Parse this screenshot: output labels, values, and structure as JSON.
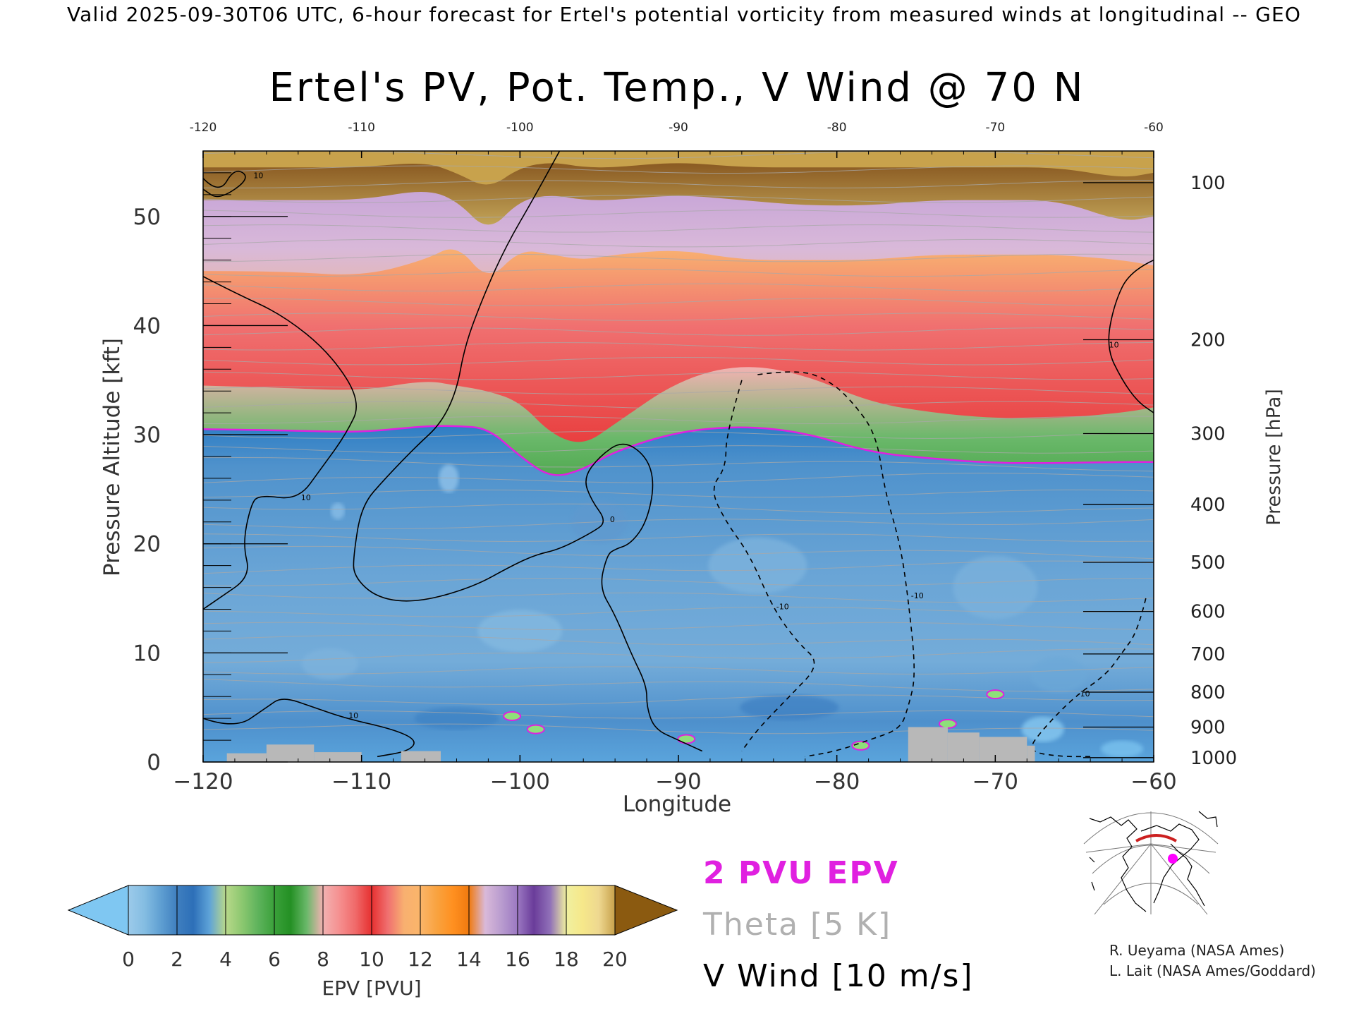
{
  "header": {
    "valid_line": "Valid 2025-09-30T06 UTC, 6-hour forecast for Ertel's potential vorticity from measured winds at longitudinal -- GEO"
  },
  "chart_data": {
    "type": "heatmap",
    "title": "Ertel's PV, Pot. Temp., V Wind @ 70 N",
    "xlabel": "Longitude",
    "ylabel": "Pressure Altitude [kft]",
    "ylabel_right": "Pressure [hPa]",
    "xlim": [
      -120,
      -60
    ],
    "ylim": [
      0,
      56
    ],
    "x_ticks": [
      -120,
      -110,
      -100,
      -90,
      -80,
      -70,
      -60
    ],
    "x_tick_labels": [
      "−120",
      "−110",
      "−100",
      "−90",
      "−80",
      "−70",
      "−60"
    ],
    "top_tick_labels": [
      "-120",
      "-110",
      "-100",
      "-90",
      "-80",
      "-70",
      "-60"
    ],
    "y_ticks": [
      0,
      10,
      20,
      30,
      40,
      50
    ],
    "y_tick_labels": [
      "0",
      "10",
      "20",
      "30",
      "40",
      "50"
    ],
    "pressure_ticks": [
      {
        "hpa": 100,
        "kft": 53.1,
        "label": "100"
      },
      {
        "hpa": 200,
        "kft": 38.7,
        "label": "200"
      },
      {
        "hpa": 300,
        "kft": 30.1,
        "label": "300"
      },
      {
        "hpa": 400,
        "kft": 23.6,
        "label": "400"
      },
      {
        "hpa": 500,
        "kft": 18.3,
        "label": "500"
      },
      {
        "hpa": 600,
        "kft": 13.8,
        "label": "600"
      },
      {
        "hpa": 700,
        "kft": 9.9,
        "label": "700"
      },
      {
        "hpa": 800,
        "kft": 6.4,
        "label": "800"
      },
      {
        "hpa": 900,
        "kft": 3.2,
        "label": "900"
      },
      {
        "hpa": 1000,
        "kft": 0.4,
        "label": "1000"
      }
    ],
    "epv_bands_kft": {
      "longitudes": [
        -120,
        -115,
        -110,
        -106,
        -104,
        -102,
        -100,
        -98,
        -96,
        -94,
        -90,
        -86,
        -82,
        -78,
        -74,
        -70,
        -66,
        -62,
        -60
      ],
      "tropopause_2pvu": [
        30.5,
        30.4,
        30.2,
        30.8,
        30.8,
        30.6,
        28.0,
        26.0,
        26.8,
        28.5,
        30.3,
        30.8,
        30.2,
        28.4,
        27.8,
        27.4,
        27.4,
        27.5,
        27.5
      ],
      "green_top": [
        34.5,
        34.3,
        34.0,
        35.0,
        34.5,
        34.0,
        33.0,
        30.0,
        29.0,
        31.0,
        35.0,
        36.5,
        35.5,
        33.0,
        32.0,
        31.5,
        31.5,
        32.0,
        32.5
      ],
      "red_top": [
        45.0,
        45.0,
        44.5,
        46.0,
        47.5,
        44.0,
        47.0,
        46.5,
        46.0,
        46.5,
        47.0,
        46.0,
        46.0,
        46.0,
        46.5,
        46.5,
        46.5,
        46.0,
        45.5
      ],
      "orange_top": [
        51.5,
        51.5,
        51.5,
        52.5,
        51.5,
        48.5,
        51.5,
        52.0,
        51.5,
        51.5,
        52.0,
        51.5,
        51.0,
        51.0,
        51.5,
        51.5,
        51.5,
        49.5,
        50.0
      ],
      "purple_top": [
        54.5,
        54.5,
        54.5,
        55.0,
        54.0,
        52.5,
        54.5,
        55.0,
        54.5,
        54.5,
        55.0,
        54.5,
        54.5,
        54.5,
        54.5,
        54.5,
        54.5,
        53.5,
        54.0
      ]
    },
    "vwind_contours": [
      {
        "label": "0",
        "style": "solid",
        "points": [
          [
            -97.5,
            56
          ],
          [
            -99,
            52
          ],
          [
            -101,
            47
          ],
          [
            -102.5,
            42
          ],
          [
            -103.5,
            38
          ],
          [
            -104,
            34
          ],
          [
            -105,
            31
          ],
          [
            -106.5,
            29
          ],
          [
            -108.5,
            26
          ],
          [
            -110,
            23.5
          ],
          [
            -110.5,
            19
          ],
          [
            -110.5,
            17
          ],
          [
            -109,
            15
          ],
          [
            -106.5,
            14.6
          ],
          [
            -103,
            16
          ],
          [
            -100.5,
            18
          ],
          [
            -99,
            19
          ],
          [
            -97.5,
            19.5
          ],
          [
            -95.5,
            21
          ],
          [
            -94.5,
            22
          ],
          [
            -95.5,
            24
          ],
          [
            -96,
            26
          ],
          [
            -95,
            28
          ],
          [
            -93.5,
            29.5
          ],
          [
            -92,
            28
          ],
          [
            -91.5,
            25.5
          ],
          [
            -92,
            22
          ],
          [
            -93,
            20
          ],
          [
            -94,
            19.5
          ],
          [
            -94.5,
            19
          ],
          [
            -95,
            16
          ],
          [
            -94,
            13.5
          ],
          [
            -93,
            10
          ],
          [
            -92,
            7
          ],
          [
            -92,
            5
          ],
          [
            -91.5,
            3
          ],
          [
            -90,
            2
          ],
          [
            -88.5,
            1
          ]
        ]
      },
      {
        "label": "10",
        "style": "solid",
        "points": [
          [
            -120,
            44.5
          ],
          [
            -118,
            43
          ],
          [
            -115,
            41
          ],
          [
            -112,
            37.5
          ],
          [
            -110,
            33
          ],
          [
            -111,
            30
          ],
          [
            -112.5,
            27
          ],
          [
            -114,
            24
          ],
          [
            -116.5,
            24.5
          ],
          [
            -117,
            23.5
          ],
          [
            -117.5,
            20
          ],
          [
            -117,
            17
          ],
          [
            -119,
            15
          ],
          [
            -120,
            14
          ]
        ]
      },
      {
        "label": "10",
        "style": "solid",
        "points": [
          [
            -120,
            53.5
          ],
          [
            -119,
            52
          ],
          [
            -118,
            54.5
          ],
          [
            -117,
            53.5
          ],
          [
            -119,
            51.5
          ],
          [
            -120,
            52.5
          ]
        ]
      },
      {
        "label": "10",
        "style": "solid",
        "points": [
          [
            -120,
            4
          ],
          [
            -118,
            3
          ],
          [
            -116,
            5
          ],
          [
            -115,
            6
          ],
          [
            -113,
            5
          ],
          [
            -111,
            4
          ],
          [
            -108,
            3
          ],
          [
            -106.5,
            2
          ],
          [
            -107,
            1
          ],
          [
            -109,
            0.5
          ]
        ]
      },
      {
        "label": "10",
        "style": "solid",
        "points": [
          [
            -60,
            46
          ],
          [
            -61.5,
            45
          ],
          [
            -62.5,
            42
          ],
          [
            -63,
            38
          ],
          [
            -62,
            35
          ],
          [
            -61,
            33
          ],
          [
            -60,
            32
          ]
        ]
      },
      {
        "label": "-10",
        "style": "dashed",
        "points": [
          [
            -85,
            35.5
          ],
          [
            -82.5,
            36
          ],
          [
            -80.5,
            35
          ],
          [
            -79,
            33
          ],
          [
            -77.5,
            30
          ],
          [
            -77,
            25
          ],
          [
            -76,
            20
          ],
          [
            -75.5,
            15
          ],
          [
            -75,
            8
          ],
          [
            -75.5,
            5
          ],
          [
            -76,
            3
          ],
          [
            -78,
            2
          ],
          [
            -80,
            1
          ],
          [
            -82,
            0.5
          ]
        ]
      },
      {
        "label": "-10",
        "style": "dashed",
        "points": [
          [
            -86,
            35
          ],
          [
            -87,
            30
          ],
          [
            -87,
            27
          ],
          [
            -88,
            25
          ],
          [
            -87,
            22
          ],
          [
            -85.5,
            19
          ],
          [
            -84,
            14
          ],
          [
            -82.5,
            11
          ],
          [
            -81,
            9
          ],
          [
            -83,
            6
          ],
          [
            -85,
            3
          ],
          [
            -86,
            1
          ]
        ]
      },
      {
        "label": "-10",
        "style": "dashed",
        "points": [
          [
            -60.5,
            15
          ],
          [
            -61,
            12
          ],
          [
            -62,
            10
          ],
          [
            -63,
            8
          ],
          [
            -65,
            6
          ],
          [
            -67,
            3
          ],
          [
            -68,
            1
          ],
          [
            -66,
            0.5
          ],
          [
            -64,
            0.5
          ]
        ]
      }
    ],
    "terrain": [
      {
        "x": [
          -118.5,
          -116
        ],
        "top": 0.8
      },
      {
        "x": [
          -116,
          -113
        ],
        "top": 1.6
      },
      {
        "x": [
          -113,
          -110
        ],
        "top": 0.9
      },
      {
        "x": [
          -107.5,
          -105
        ],
        "top": 1.0
      },
      {
        "x": [
          -75.5,
          -73
        ],
        "top": 3.2
      },
      {
        "x": [
          -73,
          -71
        ],
        "top": 2.7
      },
      {
        "x": [
          -71,
          -68
        ],
        "top": 2.3
      },
      {
        "x": [
          -68,
          -67.5
        ],
        "top": 1.5
      }
    ],
    "colorbar": {
      "label": "EPV [PVU]",
      "tick_labels": [
        "0",
        "2",
        "4",
        "6",
        "8",
        "10",
        "12",
        "14",
        "16",
        "18",
        "20"
      ],
      "under_color": "#7fc7f2",
      "over_color": "#8b5a10",
      "colors": [
        "#9ccaea",
        "#84bde2",
        "#5f9fd2",
        "#3f7fbf",
        "#2d6fb8",
        "#5ea3d8",
        "#b9d88a",
        "#8cc870",
        "#5eb35c",
        "#3aa03a",
        "#249024",
        "#6ab86a",
        "#f2b2b2",
        "#f59090",
        "#f06a6a",
        "#e63030",
        "#f07070",
        "#f8b070",
        "#fbb56a",
        "#f9a340",
        "#ff9020",
        "#f07a10",
        "#d9b9d9",
        "#b99ccf",
        "#9b78c2",
        "#6a3c9a",
        "#9070b8",
        "#f0f0a0",
        "#f6e88a",
        "#eed890",
        "#c8a24c"
      ]
    }
  },
  "legend": {
    "pvu": "2 PVU EPV",
    "theta": "Theta [5 K]",
    "vwind": "V Wind [10 m/s]"
  },
  "credits": {
    "line1": "R. Ueyama (NASA Ames)",
    "line2": "L. Lait (NASA Ames/Goddard)"
  },
  "colors": {
    "pvu_contour": "#e020e0",
    "theta_contour": "#a8a8a8",
    "terrain": "#b8b8b8",
    "track_line": "#cc2020",
    "location_dot": "#ff00ff"
  }
}
